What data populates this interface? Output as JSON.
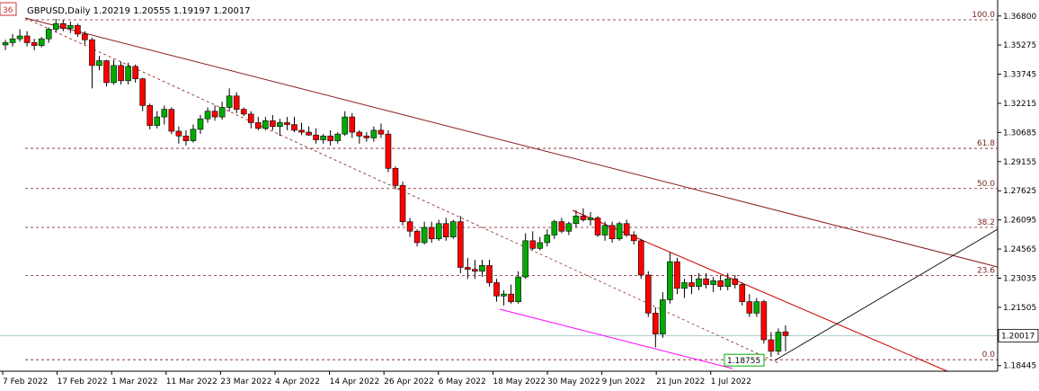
{
  "chart_data": {
    "type": "candlestick",
    "title": "GBPUSD,Daily  1.20219 1.20555 1.19197 1.20017",
    "current_price_label": "1.20017",
    "low_marker_label": "1.18755",
    "corner_label": "36",
    "ylim": [
      1.1815,
      1.3745
    ],
    "y_ticks": [
      "1.36800",
      "1.35275",
      "1.33745",
      "1.32215",
      "1.30685",
      "1.29155",
      "1.27625",
      "1.26095",
      "1.24565",
      "1.23035",
      "1.21505",
      "1.18445"
    ],
    "y_tick_values": [
      1.368,
      1.35275,
      1.33745,
      1.32215,
      1.30685,
      1.29155,
      1.27625,
      1.26095,
      1.24565,
      1.23035,
      1.21505,
      1.18445
    ],
    "x_ticks": [
      "7 Feb 2022",
      "17 Feb 2022",
      "1 Mar 2022",
      "11 Mar 2022",
      "23 Mar 2022",
      "4 Apr 2022",
      "14 Apr 2022",
      "26 Apr 2022",
      "6 May 2022",
      "18 May 2022",
      "30 May 2022",
      "9 Jun 2022",
      "21 Jun 2022",
      "1 Jul 2022"
    ],
    "fib_levels": [
      {
        "label": "100.0",
        "value": 1.366
      },
      {
        "label": "61.8",
        "value": 1.2985
      },
      {
        "label": "50.0",
        "value": 1.2774
      },
      {
        "label": "38.2",
        "value": 1.257
      },
      {
        "label": "23.6",
        "value": 1.2318
      },
      {
        "label": "0.0",
        "value": 1.18755
      }
    ],
    "grid": false,
    "colors": {
      "bull": "#00aa00",
      "bear": "#ff0000",
      "fib": "#7a1f1f",
      "trend": "#8b1a1a",
      "channel": "#cc0000",
      "magenta": "#ff00ff",
      "last_price": "#5f9ea0"
    },
    "candles": [
      [
        1.3528,
        1.3555,
        1.35,
        1.354
      ],
      [
        1.354,
        1.3585,
        1.352,
        1.356
      ],
      [
        1.356,
        1.361,
        1.3545,
        1.3575
      ],
      [
        1.3575,
        1.36,
        1.352,
        1.354
      ],
      [
        1.354,
        1.356,
        1.35,
        1.3525
      ],
      [
        1.3525,
        1.357,
        1.3515,
        1.356
      ],
      [
        1.356,
        1.362,
        1.354,
        1.361
      ],
      [
        1.361,
        1.3665,
        1.3595,
        1.364
      ],
      [
        1.364,
        1.366,
        1.36,
        1.3615
      ],
      [
        1.3615,
        1.365,
        1.359,
        1.363
      ],
      [
        1.363,
        1.364,
        1.357,
        1.3585
      ],
      [
        1.3585,
        1.36,
        1.353,
        1.3555
      ],
      [
        1.3555,
        1.3565,
        1.33,
        1.342
      ],
      [
        1.342,
        1.347,
        1.3395,
        1.3445
      ],
      [
        1.3445,
        1.345,
        1.331,
        1.333
      ],
      [
        1.333,
        1.345,
        1.332,
        1.342
      ],
      [
        1.342,
        1.344,
        1.332,
        1.334
      ],
      [
        1.334,
        1.3435,
        1.332,
        1.3415
      ],
      [
        1.3415,
        1.3425,
        1.333,
        1.335
      ],
      [
        1.335,
        1.3355,
        1.318,
        1.321
      ],
      [
        1.321,
        1.322,
        1.3085,
        1.3105
      ],
      [
        1.3105,
        1.318,
        1.309,
        1.315
      ],
      [
        1.315,
        1.321,
        1.311,
        1.319
      ],
      [
        1.319,
        1.32,
        1.306,
        1.3075
      ],
      [
        1.3075,
        1.31,
        1.301,
        1.305
      ],
      [
        1.305,
        1.308,
        1.3,
        1.3025
      ],
      [
        1.3025,
        1.311,
        1.3015,
        1.3085
      ],
      [
        1.3085,
        1.316,
        1.306,
        1.314
      ],
      [
        1.314,
        1.32,
        1.312,
        1.318
      ],
      [
        1.318,
        1.321,
        1.313,
        1.315
      ],
      [
        1.315,
        1.323,
        1.3135,
        1.32
      ],
      [
        1.32,
        1.33,
        1.318,
        1.326
      ],
      [
        1.326,
        1.328,
        1.317,
        1.319
      ],
      [
        1.319,
        1.32,
        1.3155,
        1.3165
      ],
      [
        1.3165,
        1.318,
        1.309,
        1.312
      ],
      [
        1.312,
        1.315,
        1.308,
        1.309
      ],
      [
        1.309,
        1.315,
        1.308,
        1.313
      ],
      [
        1.313,
        1.316,
        1.308,
        1.31
      ],
      [
        1.31,
        1.314,
        1.305,
        1.312
      ],
      [
        1.312,
        1.315,
        1.308,
        1.311
      ],
      [
        1.311,
        1.315,
        1.307,
        1.308
      ],
      [
        1.308,
        1.312,
        1.3055,
        1.307
      ],
      [
        1.307,
        1.31,
        1.305,
        1.3055
      ],
      [
        1.3055,
        1.309,
        1.301,
        1.303
      ],
      [
        1.303,
        1.306,
        1.301,
        1.305
      ],
      [
        1.305,
        1.308,
        1.3,
        1.3025
      ],
      [
        1.3025,
        1.307,
        1.301,
        1.306
      ],
      [
        1.306,
        1.318,
        1.305,
        1.315
      ],
      [
        1.315,
        1.317,
        1.304,
        1.307
      ],
      [
        1.307,
        1.308,
        1.301,
        1.305
      ],
      [
        1.305,
        1.307,
        1.302,
        1.304
      ],
      [
        1.304,
        1.31,
        1.302,
        1.308
      ],
      [
        1.308,
        1.3115,
        1.304,
        1.306
      ],
      [
        1.306,
        1.308,
        1.286,
        1.288
      ],
      [
        1.288,
        1.289,
        1.277,
        1.279
      ],
      [
        1.279,
        1.281,
        1.258,
        1.26
      ],
      [
        1.26,
        1.262,
        1.252,
        1.255
      ],
      [
        1.255,
        1.256,
        1.247,
        1.249
      ],
      [
        1.249,
        1.26,
        1.248,
        1.257
      ],
      [
        1.257,
        1.26,
        1.249,
        1.251
      ],
      [
        1.251,
        1.261,
        1.25,
        1.259
      ],
      [
        1.259,
        1.262,
        1.25,
        1.252
      ],
      [
        1.252,
        1.261,
        1.251,
        1.26
      ],
      [
        1.26,
        1.263,
        1.233,
        1.236
      ],
      [
        1.236,
        1.241,
        1.23,
        1.235
      ],
      [
        1.235,
        1.24,
        1.23,
        1.234
      ],
      [
        1.234,
        1.24,
        1.231,
        1.237
      ],
      [
        1.237,
        1.24,
        1.226,
        1.228
      ],
      [
        1.228,
        1.23,
        1.218,
        1.221
      ],
      [
        1.221,
        1.224,
        1.216,
        1.222
      ],
      [
        1.222,
        1.227,
        1.217,
        1.218
      ],
      [
        1.218,
        1.234,
        1.217,
        1.231
      ],
      [
        1.231,
        1.254,
        1.23,
        1.25
      ],
      [
        1.25,
        1.255,
        1.245,
        1.246
      ],
      [
        1.246,
        1.252,
        1.245,
        1.249
      ],
      [
        1.249,
        1.256,
        1.247,
        1.253
      ],
      [
        1.253,
        1.261,
        1.251,
        1.26
      ],
      [
        1.26,
        1.262,
        1.254,
        1.255
      ],
      [
        1.255,
        1.26,
        1.253,
        1.259
      ],
      [
        1.259,
        1.266,
        1.257,
        1.263
      ],
      [
        1.263,
        1.267,
        1.26,
        1.261
      ],
      [
        1.261,
        1.265,
        1.258,
        1.262
      ],
      [
        1.262,
        1.263,
        1.252,
        1.253
      ],
      [
        1.253,
        1.26,
        1.25,
        1.258
      ],
      [
        1.258,
        1.26,
        1.249,
        1.251
      ],
      [
        1.251,
        1.26,
        1.25,
        1.259
      ],
      [
        1.259,
        1.261,
        1.252,
        1.253
      ],
      [
        1.253,
        1.255,
        1.248,
        1.25
      ],
      [
        1.25,
        1.251,
        1.23,
        1.232
      ],
      [
        1.232,
        1.234,
        1.21,
        1.212
      ],
      [
        1.212,
        1.215,
        1.194,
        1.201
      ],
      [
        1.201,
        1.223,
        1.199,
        1.219
      ],
      [
        1.219,
        1.244,
        1.217,
        1.239
      ],
      [
        1.239,
        1.241,
        1.222,
        1.225
      ],
      [
        1.225,
        1.23,
        1.22,
        1.228
      ],
      [
        1.228,
        1.232,
        1.222,
        1.226
      ],
      [
        1.226,
        1.233,
        1.224,
        1.23
      ],
      [
        1.23,
        1.233,
        1.225,
        1.227
      ],
      [
        1.227,
        1.231,
        1.223,
        1.229
      ],
      [
        1.229,
        1.232,
        1.224,
        1.226
      ],
      [
        1.226,
        1.233,
        1.224,
        1.23
      ],
      [
        1.23,
        1.232,
        1.225,
        1.227
      ],
      [
        1.227,
        1.228,
        1.216,
        1.218
      ],
      [
        1.218,
        1.222,
        1.21,
        1.212
      ],
      [
        1.212,
        1.22,
        1.21,
        1.218
      ],
      [
        1.218,
        1.219,
        1.196,
        1.198
      ],
      [
        1.198,
        1.202,
        1.189,
        1.192
      ],
      [
        1.192,
        1.204,
        1.19,
        1.202
      ],
      [
        1.2022,
        1.2056,
        1.192,
        1.2002
      ]
    ]
  }
}
